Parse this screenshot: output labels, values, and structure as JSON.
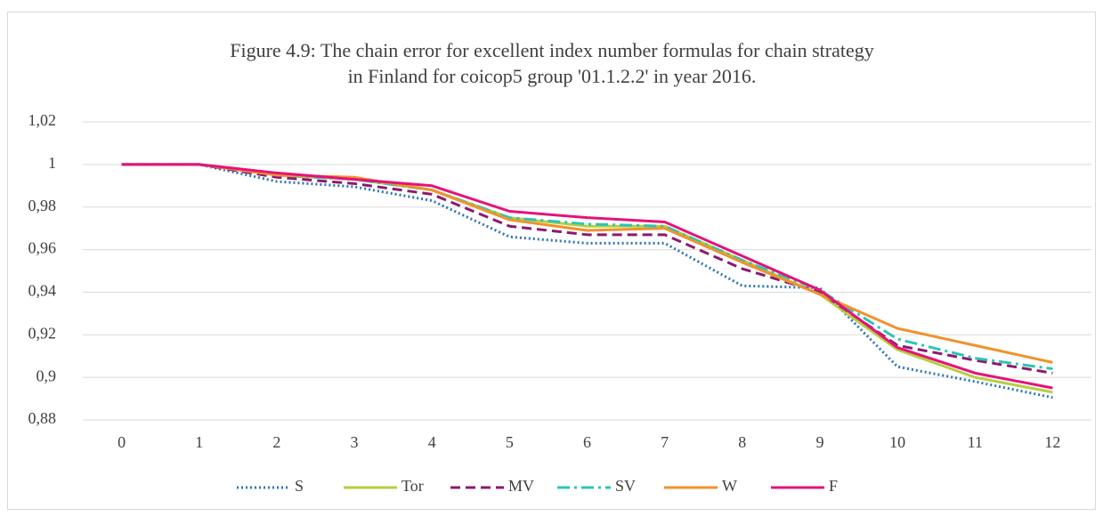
{
  "chart_data": {
    "type": "line",
    "title": [
      "Figure 4.9: The chain error for excellent index number formulas for chain strategy",
      "in Finland for coicop5 group '01.1.2.2' in year 2016."
    ],
    "categories": [
      "0",
      "1",
      "2",
      "3",
      "4",
      "5",
      "6",
      "7",
      "8",
      "9",
      "10",
      "11",
      "12"
    ],
    "ylim": [
      0.88,
      1.02
    ],
    "yticks": [
      {
        "value": 0.88,
        "label": "0,88"
      },
      {
        "value": 0.9,
        "label": "0,9"
      },
      {
        "value": 0.92,
        "label": "0,92"
      },
      {
        "value": 0.94,
        "label": "0,94"
      },
      {
        "value": 0.96,
        "label": "0,96"
      },
      {
        "value": 0.98,
        "label": "0,98"
      },
      1,
      {
        "value": 1.02,
        "label": "1,02"
      }
    ],
    "grid": true,
    "legend": "bottom",
    "series": [
      {
        "name": "S",
        "color": "#2e75b6",
        "dash": "dotted",
        "values": [
          1,
          1,
          0.992,
          0.9895,
          0.983,
          0.966,
          0.963,
          0.963,
          0.943,
          0.942,
          0.905,
          0.898,
          0.8905
        ]
      },
      {
        "name": "Tor",
        "color": "#b5cf3f",
        "dash": "solid",
        "values": [
          1,
          1,
          0.995,
          0.993,
          0.988,
          0.975,
          0.971,
          0.971,
          0.955,
          0.939,
          0.913,
          0.9,
          0.893
        ]
      },
      {
        "name": "MV",
        "color": "#8b1a6f",
        "dash": "dashed",
        "values": [
          1,
          1,
          0.994,
          0.991,
          0.986,
          0.971,
          0.967,
          0.967,
          0.951,
          0.94,
          0.915,
          0.908,
          0.902
        ]
      },
      {
        "name": "SV",
        "color": "#2ec4b6",
        "dash": "dashdot",
        "values": [
          1,
          1,
          0.995,
          0.993,
          0.988,
          0.975,
          0.972,
          0.971,
          0.955,
          0.941,
          0.918,
          0.909,
          0.904
        ]
      },
      {
        "name": "W",
        "color": "#f0922d",
        "dash": "solid",
        "values": [
          1,
          1,
          0.995,
          0.994,
          0.988,
          0.974,
          0.969,
          0.97,
          0.954,
          0.939,
          0.923,
          0.915,
          0.907
        ]
      },
      {
        "name": "F",
        "color": "#e5137a",
        "dash": "solid",
        "values": [
          1,
          1,
          0.996,
          0.993,
          0.99,
          0.978,
          0.975,
          0.973,
          0.957,
          0.941,
          0.914,
          0.902,
          0.895
        ]
      }
    ]
  }
}
